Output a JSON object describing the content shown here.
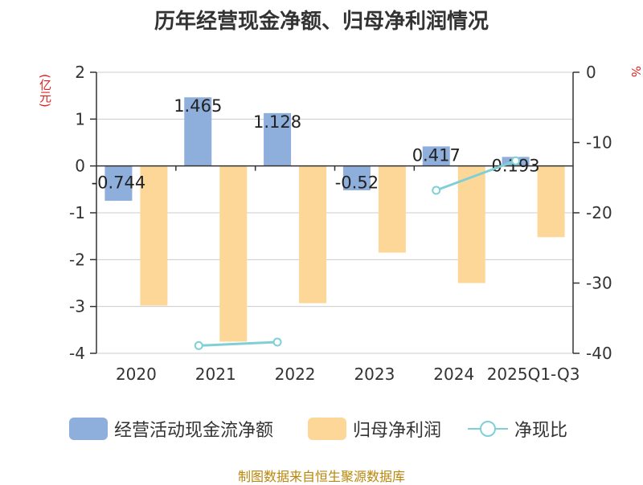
{
  "title": "历年经营现金净额、归母净利润情况",
  "left_unit": "(亿元)",
  "right_unit": "%",
  "source": "制图数据来自恒生聚源数据库",
  "legend": {
    "series1": "经营活动现金流净额",
    "series2": "归母净利润",
    "series3": "净现比"
  },
  "chart_data": {
    "type": "bar",
    "categories": [
      "2020",
      "2021",
      "2022",
      "2023",
      "2024",
      "2025Q1-Q3"
    ],
    "series": [
      {
        "name": "经营活动现金流净额",
        "values": [
          -0.744,
          1.465,
          1.128,
          -0.52,
          0.417,
          0.193
        ],
        "labels": [
          "-0.744",
          "1.465",
          "1.128",
          "-0.52",
          "0.417",
          "0.193"
        ],
        "color": "#8eaedb",
        "axis": "left"
      },
      {
        "name": "归母净利润",
        "values": [
          -2.98,
          -3.75,
          -2.93,
          -1.85,
          -2.5,
          -1.52
        ],
        "color": "#fcd797",
        "axis": "left"
      },
      {
        "name": "净现比",
        "type": "line",
        "values": [
          null,
          -38.9,
          -38.4,
          null,
          -16.8,
          -12.6
        ],
        "color": "#7fd0d6",
        "axis": "right"
      }
    ],
    "left_axis": {
      "min": -4,
      "max": 2,
      "ticks": [
        "2",
        "1",
        "0",
        "-1",
        "-2",
        "-3",
        "-4"
      ]
    },
    "right_axis": {
      "min": -40,
      "max": 0,
      "ticks": [
        "0",
        "-10",
        "-20",
        "-30",
        "-40"
      ]
    },
    "grid": true,
    "legend_position": "bottom"
  }
}
